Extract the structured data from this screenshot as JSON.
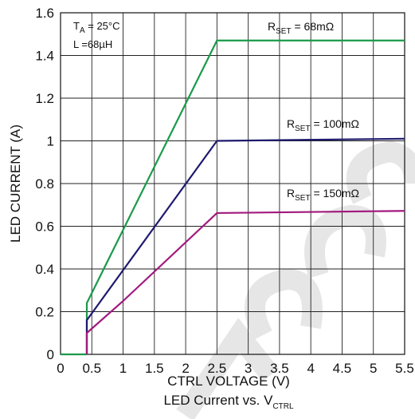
{
  "chart_data": {
    "type": "line",
    "caption": "LED Current vs. V",
    "caption_subscript": "CTRL",
    "xlabel": "CTRL VOLTAGE (V)",
    "ylabel": "LED CURRENT (A)",
    "xlim": [
      0,
      5.5
    ],
    "ylim": [
      0,
      1.6
    ],
    "xticks": [
      "0",
      "0.5",
      "1",
      "1.5",
      "2",
      "2.5",
      "3",
      "3.5",
      "4",
      "4.5",
      "5",
      "5.5"
    ],
    "yticks": [
      "0",
      "0.2",
      "0.4",
      "0.6",
      "0.8",
      "1",
      "1.2",
      "1.4",
      "1.6"
    ],
    "grid": true,
    "watermark": "NOT RECOMMENDED",
    "annotations": [
      {
        "main": "T",
        "sub": "A",
        "rest": " = 25°C"
      },
      {
        "main": "L =68µH",
        "sub": "",
        "rest": ""
      }
    ],
    "series": [
      {
        "label_main": "R",
        "label_sub": "SET",
        "label_rest": " = 68mΩ",
        "color": "#1a9a4a",
        "points": [
          [
            0,
            0
          ],
          [
            0.42,
            0
          ],
          [
            0.42,
            0.24
          ],
          [
            2.5,
            1.47
          ],
          [
            5.5,
            1.47
          ]
        ]
      },
      {
        "label_main": "R",
        "label_sub": "SET",
        "label_rest": " = 100mΩ",
        "color": "#1f1a6e",
        "points": [
          [
            0.42,
            0
          ],
          [
            0.42,
            0.16
          ],
          [
            2.5,
            1.0
          ],
          [
            5.5,
            1.01
          ]
        ]
      },
      {
        "label_main": "R",
        "label_sub": "SET",
        "label_rest": " = 150mΩ",
        "color": "#a11a7e",
        "points": [
          [
            0.42,
            0
          ],
          [
            0.42,
            0.1
          ],
          [
            1.0,
            0.25
          ],
          [
            2.5,
            0.662
          ],
          [
            5.5,
            0.672
          ]
        ]
      }
    ]
  }
}
